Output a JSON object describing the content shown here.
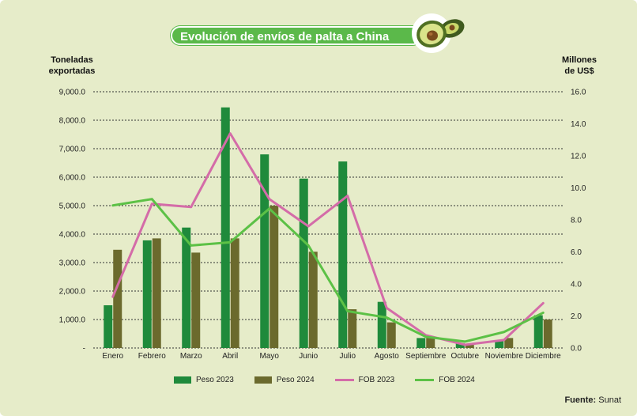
{
  "header": {
    "title": "Evolución de envíos de palta a China"
  },
  "axis": {
    "left_title": "Toneladas exportadas",
    "right_title": "Millones de US$"
  },
  "source": {
    "label": "Fuente:",
    "value": "Sunat"
  },
  "colors": {
    "background": "#e6ecc9",
    "peso2023": "#1f8a3b",
    "peso2024": "#6b6a2d",
    "fob2023": "#d46ca8",
    "fob2024": "#5cc146",
    "title_pill": "#5bb94a"
  },
  "chart_data": {
    "type": "bar",
    "categories": [
      "Enero",
      "Febrero",
      "Marzo",
      "Abril",
      "Mayo",
      "Junio",
      "Julio",
      "Agosto",
      "Septiembre",
      "Octubre",
      "Noviembre",
      "Diciembre"
    ],
    "series": [
      {
        "name": "Peso 2023",
        "type": "bar",
        "axis": "left",
        "values": [
          1500,
          3780,
          4230,
          8450,
          6800,
          5950,
          6550,
          1620,
          350,
          170,
          250,
          1150
        ]
      },
      {
        "name": "Peso 2024",
        "type": "bar",
        "axis": "left",
        "values": [
          3450,
          3850,
          3350,
          3850,
          5000,
          3380,
          1360,
          900,
          350,
          130,
          350,
          1000
        ]
      },
      {
        "name": "FOB 2023",
        "type": "line",
        "axis": "right",
        "values": [
          3.2,
          9.0,
          8.8,
          13.4,
          9.3,
          7.6,
          9.5,
          2.5,
          0.8,
          0.2,
          0.5,
          2.8
        ]
      },
      {
        "name": "FOB 2024",
        "type": "line",
        "axis": "right",
        "values": [
          8.9,
          9.3,
          6.4,
          6.6,
          8.7,
          6.4,
          2.3,
          1.9,
          0.7,
          0.4,
          1.0,
          2.2
        ]
      }
    ],
    "y_left": {
      "range": [
        0,
        9000
      ],
      "ticks": [
        "-",
        "1,000.0",
        "2,000.0",
        "3,000.0",
        "4,000.0",
        "5,000.0",
        "6,000.0",
        "7,000.0",
        "8,000.0",
        "9,000.0"
      ]
    },
    "y_right": {
      "range": [
        0,
        16
      ],
      "ticks": [
        "0.0",
        "2.0",
        "4.0",
        "6.0",
        "8.0",
        "10.0",
        "12.0",
        "14.0",
        "16.0"
      ]
    },
    "grid": "horizontal dotted",
    "legend": "bottom"
  }
}
